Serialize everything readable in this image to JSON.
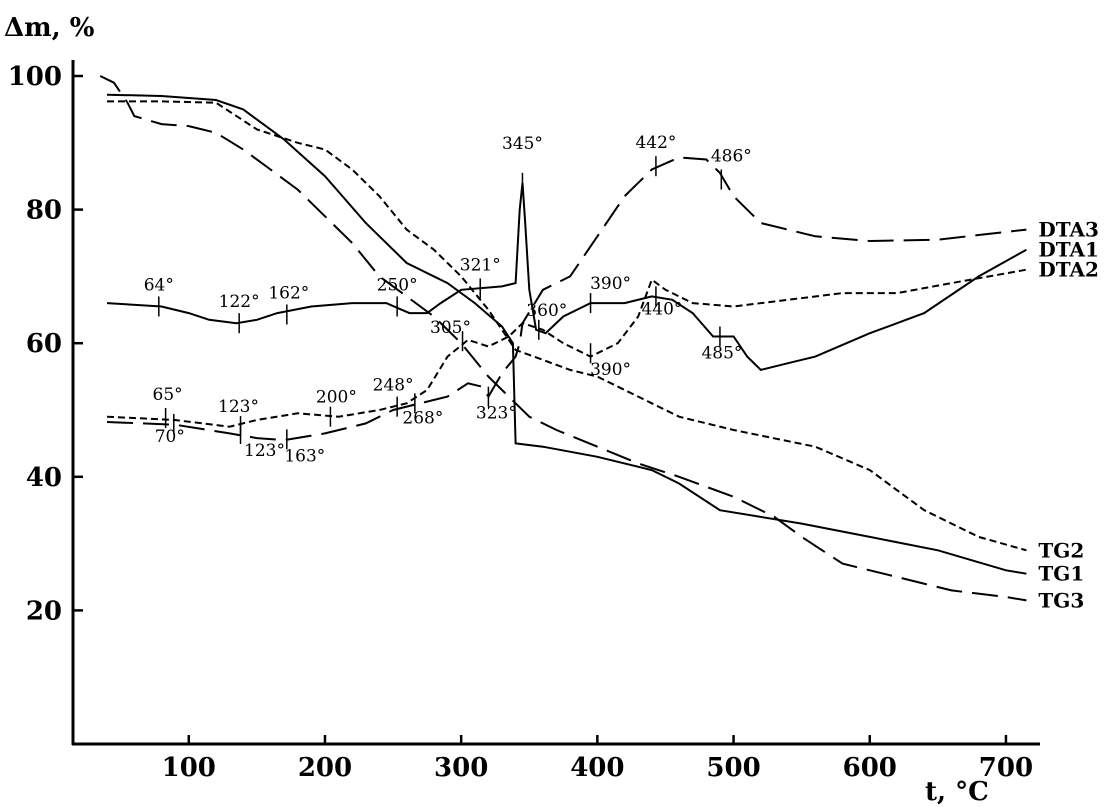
{
  "chart_data": {
    "type": "line",
    "xlabel": "t, °C",
    "ylabel": "Δm, %",
    "xlim": [
      15,
      725
    ],
    "ylim": [
      0,
      100
    ],
    "xticks": [
      100,
      200,
      300,
      400,
      500,
      600,
      700
    ],
    "yticks": [
      20,
      40,
      60,
      80,
      100
    ],
    "grid": false,
    "legend": "none",
    "series": [
      {
        "name": "TG1",
        "style": "solid",
        "points": [
          [
            40,
            97.2
          ],
          [
            80,
            97
          ],
          [
            120,
            96.4
          ],
          [
            140,
            95
          ],
          [
            170,
            90.5
          ],
          [
            200,
            85
          ],
          [
            230,
            78
          ],
          [
            260,
            72
          ],
          [
            290,
            69
          ],
          [
            310,
            66
          ],
          [
            330,
            62.5
          ],
          [
            338,
            60
          ],
          [
            340,
            45
          ],
          [
            360,
            44.5
          ],
          [
            400,
            43
          ],
          [
            440,
            41
          ],
          [
            460,
            39
          ],
          [
            490,
            35
          ],
          [
            550,
            33
          ],
          [
            600,
            31
          ],
          [
            650,
            29
          ],
          [
            700,
            26
          ],
          [
            715,
            25.5
          ]
        ],
        "label": "TG1"
      },
      {
        "name": "TG2",
        "style": "dashed",
        "points": [
          [
            40,
            96.2
          ],
          [
            80,
            96.2
          ],
          [
            120,
            96
          ],
          [
            150,
            92
          ],
          [
            180,
            90
          ],
          [
            200,
            89
          ],
          [
            220,
            86
          ],
          [
            240,
            82
          ],
          [
            260,
            77
          ],
          [
            280,
            74
          ],
          [
            300,
            70
          ],
          [
            320,
            65
          ],
          [
            340,
            59
          ],
          [
            360,
            57.5
          ],
          [
            380,
            56
          ],
          [
            400,
            55
          ],
          [
            440,
            51
          ],
          [
            460,
            49
          ],
          [
            500,
            47
          ],
          [
            560,
            44.5
          ],
          [
            600,
            41
          ],
          [
            640,
            35
          ],
          [
            680,
            31
          ],
          [
            715,
            29
          ]
        ],
        "label": "TG2"
      },
      {
        "name": "TG3",
        "style": "long-dash",
        "points": [
          [
            35,
            100
          ],
          [
            45,
            99
          ],
          [
            55,
            96
          ],
          [
            60,
            94
          ],
          [
            80,
            92.8
          ],
          [
            100,
            92.5
          ],
          [
            120,
            91.5
          ],
          [
            140,
            89
          ],
          [
            160,
            86
          ],
          [
            180,
            83
          ],
          [
            200,
            79
          ],
          [
            220,
            75
          ],
          [
            240,
            70
          ],
          [
            260,
            67
          ],
          [
            280,
            64
          ],
          [
            300,
            60
          ],
          [
            320,
            55
          ],
          [
            340,
            51
          ],
          [
            350,
            49
          ],
          [
            370,
            47
          ],
          [
            400,
            44.5
          ],
          [
            430,
            42
          ],
          [
            460,
            40
          ],
          [
            500,
            37
          ],
          [
            530,
            34
          ],
          [
            550,
            31
          ],
          [
            580,
            27
          ],
          [
            620,
            25
          ],
          [
            660,
            23
          ],
          [
            700,
            22
          ],
          [
            715,
            21.5
          ]
        ],
        "label": "TG3"
      },
      {
        "name": "DTA1",
        "style": "solid",
        "points": [
          [
            40,
            66
          ],
          [
            80,
            65.5
          ],
          [
            100,
            64.5
          ],
          [
            115,
            63.5
          ],
          [
            135,
            63
          ],
          [
            150,
            63.5
          ],
          [
            165,
            64.5
          ],
          [
            190,
            65.5
          ],
          [
            220,
            66
          ],
          [
            245,
            66
          ],
          [
            262,
            64.5
          ],
          [
            275,
            64.5
          ],
          [
            285,
            66
          ],
          [
            300,
            68
          ],
          [
            330,
            68.5
          ],
          [
            340,
            69
          ],
          [
            343,
            80
          ],
          [
            345,
            84
          ],
          [
            347,
            78
          ],
          [
            350,
            68
          ],
          [
            355,
            62
          ],
          [
            362,
            61.5
          ],
          [
            375,
            64
          ],
          [
            395,
            66
          ],
          [
            420,
            66
          ],
          [
            440,
            67
          ],
          [
            455,
            66.5
          ],
          [
            470,
            64.5
          ],
          [
            485,
            61
          ],
          [
            500,
            61
          ],
          [
            510,
            58
          ],
          [
            520,
            56
          ],
          [
            540,
            57
          ],
          [
            560,
            58
          ],
          [
            600,
            61.5
          ],
          [
            620,
            63
          ],
          [
            640,
            64.5
          ],
          [
            680,
            70
          ],
          [
            715,
            74
          ]
        ],
        "label": "DTA1"
      },
      {
        "name": "DTA2",
        "style": "dashed",
        "points": [
          [
            40,
            49
          ],
          [
            90,
            48.5
          ],
          [
            130,
            47.5
          ],
          [
            150,
            48.5
          ],
          [
            180,
            49.5
          ],
          [
            210,
            49
          ],
          [
            240,
            50
          ],
          [
            260,
            51
          ],
          [
            275,
            53
          ],
          [
            290,
            58
          ],
          [
            305,
            60.5
          ],
          [
            320,
            59.5
          ],
          [
            335,
            61
          ],
          [
            345,
            63
          ],
          [
            360,
            62
          ],
          [
            375,
            60
          ],
          [
            395,
            58
          ],
          [
            415,
            60
          ],
          [
            430,
            64
          ],
          [
            440,
            69.5
          ],
          [
            450,
            68
          ],
          [
            470,
            66
          ],
          [
            500,
            65.5
          ],
          [
            540,
            66.5
          ],
          [
            580,
            67.5
          ],
          [
            620,
            67.5
          ],
          [
            660,
            69
          ],
          [
            715,
            71
          ]
        ],
        "label": "DTA2"
      },
      {
        "name": "DTA3",
        "style": "long-dash",
        "points": [
          [
            40,
            48.2
          ],
          [
            90,
            47.8
          ],
          [
            130,
            46.5
          ],
          [
            150,
            45.8
          ],
          [
            170,
            45.5
          ],
          [
            200,
            46.5
          ],
          [
            230,
            48
          ],
          [
            250,
            50
          ],
          [
            270,
            51
          ],
          [
            290,
            52
          ],
          [
            305,
            54
          ],
          [
            315,
            53.5
          ],
          [
            320,
            52
          ],
          [
            330,
            55.5
          ],
          [
            340,
            58
          ],
          [
            343,
            60
          ],
          [
            345,
            63
          ],
          [
            360,
            68
          ],
          [
            380,
            70
          ],
          [
            400,
            76
          ],
          [
            420,
            82
          ],
          [
            440,
            86
          ],
          [
            460,
            87.8
          ],
          [
            480,
            87.5
          ],
          [
            490,
            85.5
          ],
          [
            500,
            82
          ],
          [
            520,
            78
          ],
          [
            560,
            76
          ],
          [
            600,
            75.3
          ],
          [
            650,
            75.5
          ],
          [
            715,
            77
          ]
        ],
        "label": "DTA3"
      }
    ],
    "annotations": [
      {
        "text": "64°",
        "x": 78,
        "y": 65.5,
        "marker": true
      },
      {
        "text": "122°",
        "x": 137,
        "y": 63,
        "marker": true
      },
      {
        "text": "162°",
        "x": 172,
        "y": 64.3,
        "marker": true
      },
      {
        "text": "250°",
        "x": 253,
        "y": 65.5,
        "marker": true
      },
      {
        "text": "321°",
        "x": 314,
        "y": 68.2,
        "marker": true
      },
      {
        "text": "345°",
        "x": 345,
        "y": 84,
        "marker": false
      },
      {
        "text": "360°",
        "x": 357,
        "y": 62,
        "marker": true
      },
      {
        "text": "390°",
        "x": 395,
        "y": 66,
        "marker": true
      },
      {
        "text": "440°",
        "x": 443,
        "y": 67,
        "marker": true
      },
      {
        "text": "442°",
        "x": 443,
        "y": 86.5,
        "marker": true
      },
      {
        "text": "486°",
        "x": 491,
        "y": 84.5,
        "marker": true
      },
      {
        "text": "485°",
        "x": 490,
        "y": 61,
        "marker": true,
        "color": "#c00000"
      },
      {
        "text": "305°",
        "x": 301,
        "y": 60.3,
        "marker": true
      },
      {
        "text": "390°",
        "x": 395,
        "y": 58.5,
        "marker": true
      },
      {
        "text": "65°",
        "x": 83,
        "y": 48.8,
        "marker": true
      },
      {
        "text": "70°",
        "x": 89,
        "y": 47.9,
        "marker": true
      },
      {
        "text": "123°",
        "x": 138,
        "y": 47.6,
        "marker": true
      },
      {
        "text": "123°",
        "x": 138,
        "y": 46.4,
        "marker": true
      },
      {
        "text": "163°",
        "x": 172,
        "y": 45.6,
        "marker": true
      },
      {
        "text": "200°",
        "x": 204,
        "y": 49,
        "marker": true
      },
      {
        "text": "248°",
        "x": 253,
        "y": 50.5,
        "marker": true
      },
      {
        "text": "268°",
        "x": 266,
        "y": 51,
        "marker": true
      },
      {
        "text": "323°",
        "x": 320,
        "y": 52,
        "marker": true,
        "color": "#c00000"
      }
    ]
  }
}
